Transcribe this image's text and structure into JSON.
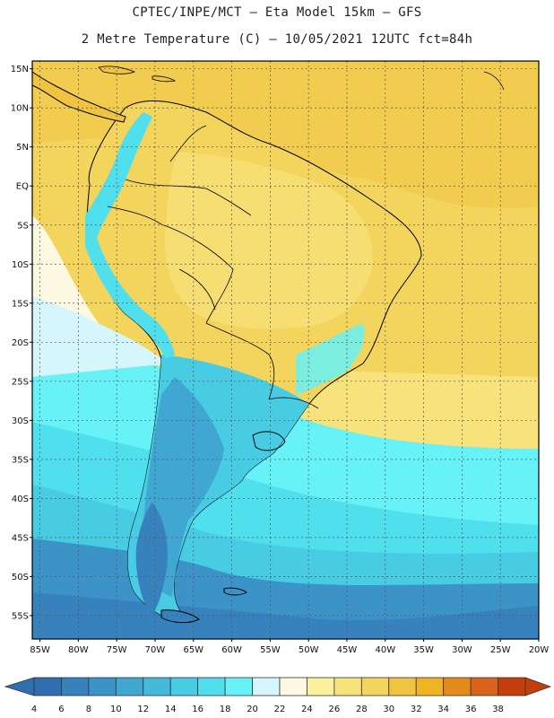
{
  "header": {
    "line1": "CPTEC/INPE/MCT –  Eta Model 15km – GFS",
    "line2": "2 Metre Temperature (C) – 10/05/2021 12UTC fct=84h"
  },
  "map": {
    "lat_ticks": [
      "15N",
      "10N",
      "5N",
      "EQ",
      "5S",
      "10S",
      "15S",
      "20S",
      "25S",
      "30S",
      "35S",
      "40S",
      "45S",
      "50S",
      "55S"
    ],
    "lon_ticks": [
      "85W",
      "80W",
      "75W",
      "70W",
      "65W",
      "60W",
      "55W",
      "50W",
      "45W",
      "40W",
      "35W",
      "30W",
      "25W",
      "20W"
    ],
    "lat_range_deg": [
      -58,
      16
    ],
    "lon_range_deg": [
      -86,
      -20
    ]
  },
  "colorbar": {
    "labels": [
      "4",
      "6",
      "8",
      "10",
      "12",
      "14",
      "16",
      "18",
      "20",
      "22",
      "24",
      "26",
      "28",
      "30",
      "32",
      "34",
      "36",
      "38"
    ],
    "colors": [
      "#2f6fb0",
      "#3781bd",
      "#3b93c7",
      "#40a6d2",
      "#44b9da",
      "#48cce3",
      "#50dfec",
      "#66f2f6",
      "#d4f6fc",
      "#fdf8e2",
      "#fbf09d",
      "#f8e27c",
      "#f3d45d",
      "#f0c441",
      "#efb323",
      "#e58a1a",
      "#d9631a",
      "#c43d0c"
    ]
  }
}
